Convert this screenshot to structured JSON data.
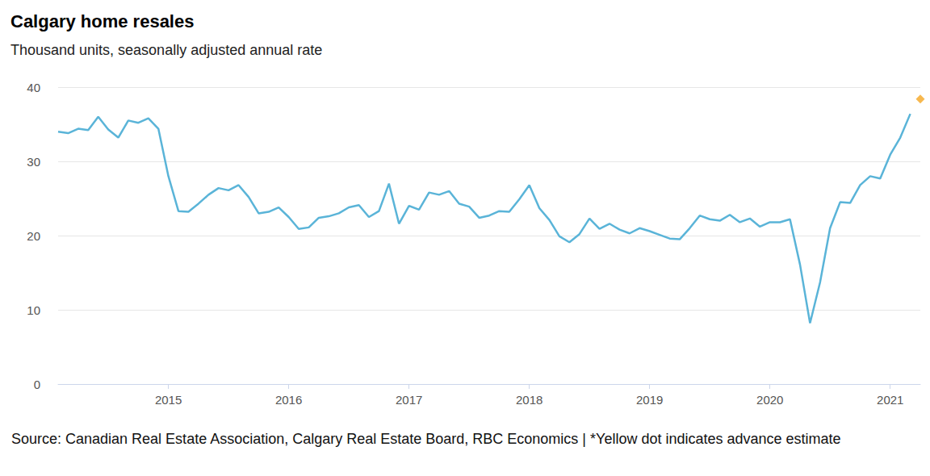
{
  "chart_data": {
    "type": "line",
    "title": "Calgary home resales",
    "subtitle": "Thousand units, seasonally adjusted annual rate",
    "source": "Source: Canadian Real Estate Association, Calgary Real Estate Board, RBC Economics | *Yellow dot indicates advance estimate",
    "categories": [
      null,
      null,
      null,
      null,
      null,
      null,
      null,
      null,
      null,
      null,
      null,
      "2015",
      null,
      null,
      null,
      null,
      null,
      null,
      null,
      null,
      null,
      null,
      null,
      "2016",
      null,
      null,
      null,
      null,
      null,
      null,
      null,
      null,
      null,
      null,
      null,
      "2017",
      null,
      null,
      null,
      null,
      null,
      null,
      null,
      null,
      null,
      null,
      null,
      "2018",
      null,
      null,
      null,
      null,
      null,
      null,
      null,
      null,
      null,
      null,
      null,
      "2019",
      null,
      null,
      null,
      null,
      null,
      null,
      null,
      null,
      null,
      null,
      null,
      "2020",
      null,
      null,
      null,
      null,
      null,
      null,
      null,
      null,
      null,
      null,
      null,
      "2021",
      null,
      null,
      null
    ],
    "series": [
      {
        "color": "#5ab4d8",
        "type": "line",
        "line_style": "solid",
        "values": [
          34.0,
          33.8,
          34.4,
          34.2,
          36.0,
          34.3,
          33.2,
          35.5,
          35.2,
          35.8,
          34.4,
          28.0,
          23.3,
          23.2,
          24.3,
          25.5,
          26.4,
          26.1,
          26.8,
          25.2,
          23.0,
          23.2,
          23.8,
          22.5,
          20.9,
          21.1,
          22.4,
          22.6,
          23.0,
          23.8,
          24.1,
          22.5,
          23.3,
          27.0,
          21.6,
          24.0,
          23.5,
          25.8,
          25.5,
          26.0,
          24.3,
          23.9,
          22.4,
          22.7,
          23.3,
          23.2,
          24.9,
          26.8,
          23.7,
          22.1,
          19.9,
          19.1,
          20.2,
          22.3,
          20.9,
          21.6,
          20.8,
          20.3,
          21.0,
          20.6,
          20.1,
          19.6,
          19.5,
          21.0,
          22.7,
          22.2,
          22.0,
          22.8,
          21.8,
          22.3,
          21.2,
          21.8,
          21.8,
          22.2,
          16.1,
          8.2,
          13.7,
          21.0,
          24.5,
          24.4,
          26.8,
          28.0,
          27.7,
          30.9,
          33.2,
          36.4,
          null
        ]
      },
      {
        "color": "#f5a623",
        "type": "scatter",
        "marker": "diamond",
        "values": [
          null,
          null,
          null,
          null,
          null,
          null,
          null,
          null,
          null,
          null,
          null,
          null,
          null,
          null,
          null,
          null,
          null,
          null,
          null,
          null,
          null,
          null,
          null,
          null,
          null,
          null,
          null,
          null,
          null,
          null,
          null,
          null,
          null,
          null,
          null,
          null,
          null,
          null,
          null,
          null,
          null,
          null,
          null,
          null,
          null,
          null,
          null,
          null,
          null,
          null,
          null,
          null,
          null,
          null,
          null,
          null,
          null,
          null,
          null,
          null,
          null,
          null,
          null,
          null,
          null,
          null,
          null,
          null,
          null,
          null,
          null,
          null,
          null,
          null,
          null,
          null,
          null,
          null,
          null,
          null,
          null,
          null,
          null,
          null,
          null,
          null,
          38.4
        ]
      }
    ],
    "ylim": [
      0,
      40
    ],
    "yticks": [
      0,
      10,
      20,
      30,
      40
    ],
    "grid": true
  }
}
